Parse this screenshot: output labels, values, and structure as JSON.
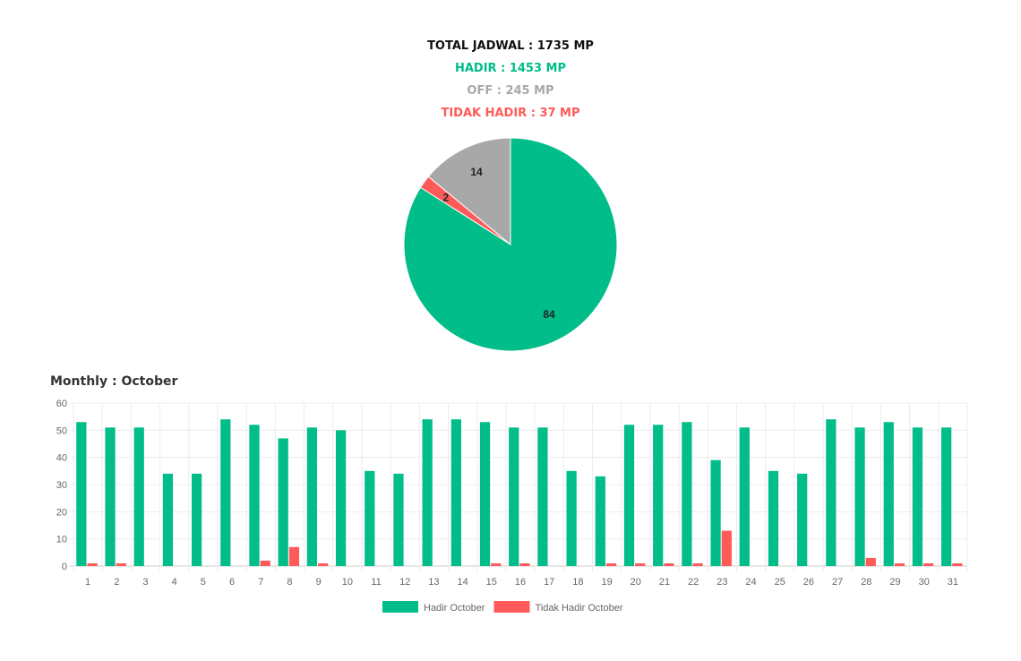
{
  "summary": {
    "total": "TOTAL JADWAL : 1735 MP",
    "hadir": "HADIR : 1453 MP",
    "off": "OFF : 245 MP",
    "tidak_hadir": "TIDAK HADIR : 37 MP"
  },
  "monthly_title": "Monthly : October",
  "chart_data": [
    {
      "type": "pie",
      "slices": [
        {
          "label": "Hadir",
          "value": 84,
          "color": "#00bd8a"
        },
        {
          "label": "Tidak Hadir",
          "value": 2,
          "color": "#ff5a5a"
        },
        {
          "label": "Off",
          "value": 14,
          "color": "#a8a8a8"
        }
      ]
    },
    {
      "type": "bar",
      "title": "Monthly : October",
      "ylim": [
        0,
        60
      ],
      "yticks": [
        0,
        10,
        20,
        30,
        40,
        50,
        60
      ],
      "categories": [
        "1",
        "2",
        "3",
        "4",
        "5",
        "6",
        "7",
        "8",
        "9",
        "10",
        "11",
        "12",
        "13",
        "14",
        "15",
        "16",
        "17",
        "18",
        "19",
        "20",
        "21",
        "22",
        "23",
        "24",
        "25",
        "26",
        "27",
        "28",
        "29",
        "30",
        "31"
      ],
      "series": [
        {
          "name": "Hadir October",
          "color": "#00bd8a",
          "values": [
            53,
            51,
            51,
            34,
            34,
            54,
            52,
            47,
            51,
            50,
            35,
            34,
            54,
            54,
            53,
            51,
            51,
            35,
            33,
            52,
            52,
            53,
            39,
            51,
            35,
            34,
            54,
            51,
            53,
            51,
            51
          ]
        },
        {
          "name": "Tidak Hadir October",
          "color": "#ff5a5a",
          "values": [
            1,
            1,
            0,
            0,
            0,
            0,
            2,
            7,
            1,
            0,
            0,
            0,
            0,
            0,
            1,
            1,
            0,
            0,
            1,
            1,
            1,
            1,
            13,
            0,
            0,
            0,
            0,
            3,
            1,
            1,
            1
          ]
        }
      ],
      "legend": "bottom",
      "grid": true
    }
  ]
}
